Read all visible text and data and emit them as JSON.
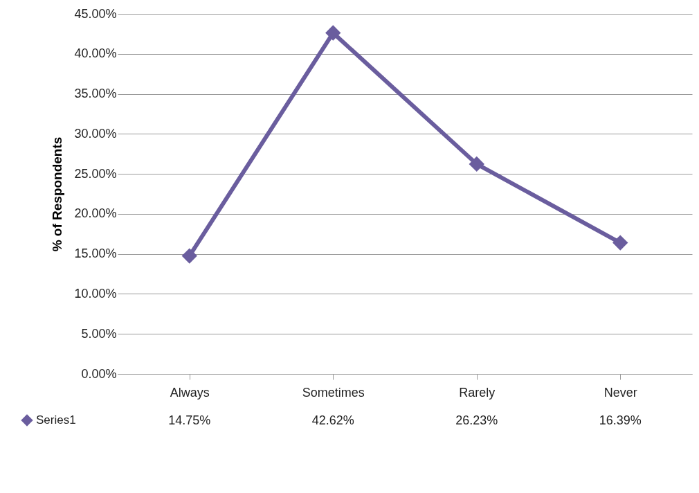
{
  "chart_data": {
    "type": "line",
    "ylabel": "% of Respondents",
    "categories": [
      "Always",
      "Sometimes",
      "Rarely",
      "Never"
    ],
    "series": [
      {
        "name": "Series1",
        "color": "#6a5d9e",
        "values": [
          14.75,
          42.62,
          26.23,
          16.39
        ],
        "value_labels": [
          "14.75%",
          "42.62%",
          "26.23%",
          "16.39%"
        ]
      }
    ],
    "ylim": [
      0,
      45
    ],
    "yticks": [
      {
        "value": 0,
        "label": "0.00%"
      },
      {
        "value": 5,
        "label": "5.00%"
      },
      {
        "value": 10,
        "label": "10.00%"
      },
      {
        "value": 15,
        "label": "15.00%"
      },
      {
        "value": 20,
        "label": "20.00%"
      },
      {
        "value": 25,
        "label": "25.00%"
      },
      {
        "value": 30,
        "label": "30.00%"
      },
      {
        "value": 35,
        "label": "35.00%"
      },
      {
        "value": 40,
        "label": "40.00%"
      },
      {
        "value": 45,
        "label": "45.00%"
      }
    ],
    "grid": "y",
    "legend": "bottom left",
    "marker": "diamond",
    "line_style": "solid"
  }
}
